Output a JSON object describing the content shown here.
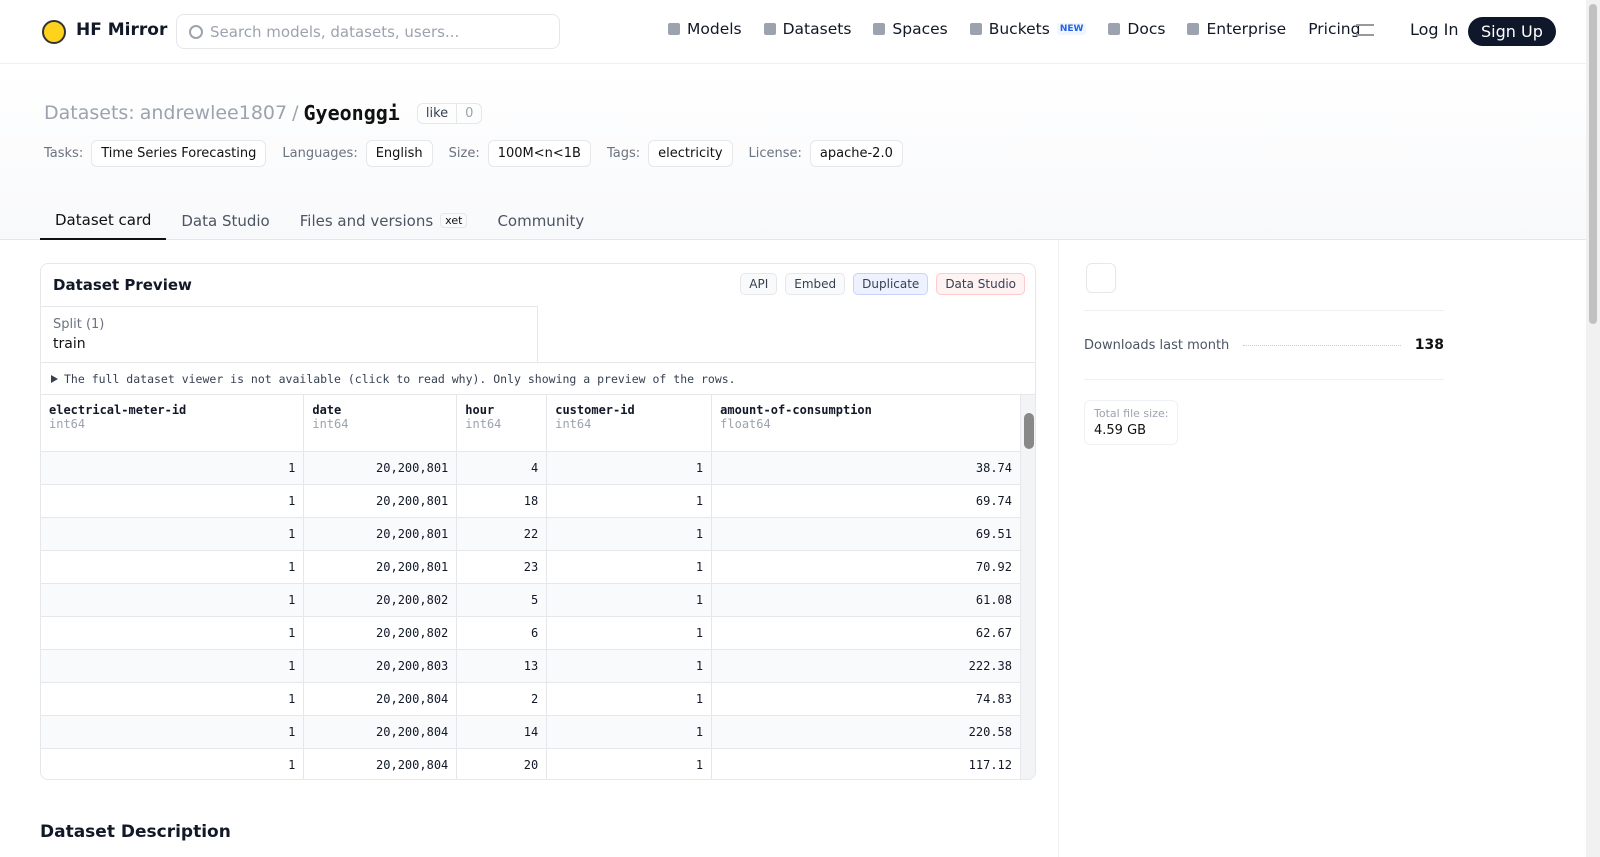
{
  "nav": {
    "brand": "HF Mirror",
    "search_placeholder": "Search models, datasets, users...",
    "links": [
      "Models",
      "Datasets",
      "Spaces",
      "Buckets",
      "Docs",
      "Enterprise",
      "Pricing"
    ],
    "buckets_badge": "NEW",
    "login": "Log In",
    "signup": "Sign Up"
  },
  "header": {
    "prefix": "Datasets:",
    "owner": "andrewlee1807",
    "separator": "/",
    "name": "Gyeonggi",
    "like": "like",
    "likes": 0,
    "tags": [
      {
        "label": "Tasks:",
        "value": "Time Series Forecasting"
      },
      {
        "label": "Languages:",
        "value": "English"
      },
      {
        "label": "Size:",
        "value": "100M<n<1B"
      },
      {
        "label": "Tags:",
        "value": "electricity"
      },
      {
        "label": "License:",
        "value": "apache-2.0"
      }
    ]
  },
  "tabs": [
    "Dataset card",
    "Data Studio",
    "Files and versions",
    "Community"
  ],
  "xet_badge": "xet",
  "preview": {
    "title": "Dataset Preview",
    "buttons": [
      "API",
      "Embed",
      "Duplicate",
      "Data Studio"
    ],
    "split_label": "Split (1)",
    "split_value": "train",
    "notice": "The full dataset viewer is not available (click to read why). Only showing a preview of the rows."
  },
  "table": {
    "columns": [
      {
        "name": "electrical-meter-id",
        "type": "int64"
      },
      {
        "name": "date",
        "type": "int64"
      },
      {
        "name": "hour",
        "type": "int64"
      },
      {
        "name": "customer-id",
        "type": "int64"
      },
      {
        "name": "amount-of-consumption",
        "type": "float64"
      }
    ],
    "rows": [
      [
        "1",
        "20,200,801",
        "4",
        "1",
        "38.74"
      ],
      [
        "1",
        "20,200,801",
        "18",
        "1",
        "69.74"
      ],
      [
        "1",
        "20,200,801",
        "22",
        "1",
        "69.51"
      ],
      [
        "1",
        "20,200,801",
        "23",
        "1",
        "70.92"
      ],
      [
        "1",
        "20,200,802",
        "5",
        "1",
        "61.08"
      ],
      [
        "1",
        "20,200,802",
        "6",
        "1",
        "62.67"
      ],
      [
        "1",
        "20,200,803",
        "13",
        "1",
        "222.38"
      ],
      [
        "1",
        "20,200,804",
        "2",
        "1",
        "74.83"
      ],
      [
        "1",
        "20,200,804",
        "14",
        "1",
        "220.58"
      ],
      [
        "1",
        "20,200,804",
        "20",
        "1",
        "117.12"
      ]
    ]
  },
  "sidebar": {
    "downloads_label": "Downloads last month",
    "downloads": 138,
    "file_size_label": "Total file size:",
    "file_size": "4.59 GB"
  },
  "description_title": "Dataset Description"
}
